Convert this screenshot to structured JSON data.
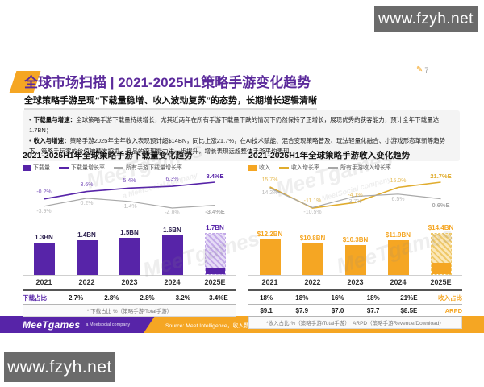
{
  "badge": {
    "text": "www.fzyh.net"
  },
  "page_number": "7",
  "header": {
    "title": "全球市场扫描 | 2021-2025H1策略手游变化趋势",
    "subtitle": "全球策略手游呈现“下载量稳增、收入波动复苏”的态势，长期增长逻辑清晰"
  },
  "bullets": [
    {
      "label": "下载量与增速：",
      "text": "全球策略手游下载量持续增长，尤其近两年在所有手游下载量下跌的情况下仍然保持了正增长，展现优秀的获客能力，预计全年下载量达1.7BN；"
    },
    {
      "label": "收入与增速：",
      "text": "策略手游2025年全年收入表现预计超$14BN，同比上涨21.7%，在AI技术赋能、混合变现策略普及、玩法轻量化融合、小游戏形态革新等趋势下，策略手玩家的价值被精准挖掘，产品的变现能力进一步提升，增长表现远超整体手游平均表现。"
    }
  ],
  "chart_data": [
    {
      "type": "bar+line",
      "title": "2021-2025H1年全球策略手游下载量变化趋势",
      "categories": [
        "2021",
        "2022",
        "2023",
        "2024",
        "2025E"
      ],
      "bars": {
        "name": "下载量",
        "unit": "BN",
        "values": [
          1.3,
          1.4,
          1.5,
          1.6,
          1.7
        ],
        "labels": [
          "1.3BN",
          "1.4BN",
          "1.5BN",
          "1.6BN",
          "1.7BN"
        ],
        "color": "#5724A8",
        "hatch_light": "#E6DCF6",
        "hatch_dark": "#C3A9E8",
        "estimate_last": true,
        "estimate_solid_fraction": 0.16,
        "label_color": "#2E2250"
      },
      "lines": [
        {
          "name": "下载量增长率",
          "color": "#5724A8",
          "values": [
            -0.2,
            3.6,
            5.4,
            6.3,
            8.4
          ],
          "labels": [
            "-0.2%",
            "3.6%",
            "5.4%",
            "6.3%",
            "8.4%E"
          ]
        },
        {
          "name": "所有手游下载量增长率",
          "color": "#A8A8A8",
          "values": [
            -3.9,
            0.2,
            -1.4,
            -4.8,
            -3.4
          ],
          "labels": [
            "-3.9%",
            "0.2%",
            "-1.4%",
            "-4.8%",
            "-3.4%E"
          ]
        }
      ],
      "table": {
        "label_side": "left",
        "rows": [
          {
            "label": "下载占比",
            "label_color": "#5724A8",
            "cells": [
              "2.7%",
              "2.8%",
              "2.8%",
              "3.2%",
              "3.4%E"
            ]
          }
        ]
      },
      "footnote": "* 下载占比 %（策略手游/Total手游）"
    },
    {
      "type": "bar+line",
      "title": "2021-2025H1年全球策略手游收入变化趋势",
      "categories": [
        "2021",
        "2022",
        "2023",
        "2024",
        "2025E"
      ],
      "bars": {
        "name": "收入",
        "unit": "$BN",
        "values": [
          12.2,
          10.8,
          10.3,
          11.9,
          14.4
        ],
        "labels": [
          "$12.2BN",
          "$10.8BN",
          "$10.3BN",
          "$11.9BN",
          "$14.4BN"
        ],
        "color": "#F5A623",
        "hatch_light": "#FBE7B8",
        "hatch_dark": "#EFC869",
        "estimate_last": true,
        "estimate_solid_fraction": 0.27,
        "label_color": "#F5A623"
      },
      "lines": [
        {
          "name": "收入增长率",
          "color": "#E0AC2E",
          "values": [
            15.7,
            -11.1,
            -4.1,
            15.0,
            21.7
          ],
          "labels": [
            "15.7%",
            "-11.1%",
            "-4.1%",
            "15.0%",
            "21.7%E"
          ]
        },
        {
          "name": "所有手游收入增长率",
          "color": "#A8A8A8",
          "values": [
            14.2,
            -10.5,
            3.7,
            6.5,
            0.6
          ],
          "labels": [
            "14.2%",
            "-10.5%",
            "3.7%",
            "6.5%",
            "0.6%E"
          ]
        }
      ],
      "table": {
        "label_side": "right",
        "rows": [
          {
            "label": "收入占比",
            "label_color": "#F5A623",
            "cells": [
              "18%",
              "18%",
              "16%",
              "18%",
              "21%E"
            ]
          },
          {
            "label": "ARPD",
            "label_color": "#F5A623",
            "cells": [
              "$9.1",
              "$7.9",
              "$7.0",
              "$7.7",
              "$8.5E"
            ]
          }
        ]
      },
      "footnote": "*收入占比 %（策略手游/Total手游）　ARPD（策略手游Revenue/Download）"
    }
  ],
  "footer": {
    "logo": "MeeTgames",
    "tagline": "a Meetsocial company",
    "source": "Source: Meet Intelligence，收入数据包括iOS与谷歌商店下载及内购收入，不包括第三方广告收入"
  },
  "watermark": {
    "main": "MeeTgames",
    "sub": "a MeetSocial company"
  }
}
